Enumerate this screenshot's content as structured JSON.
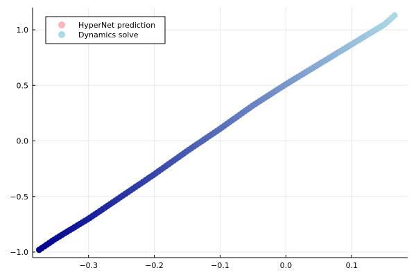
{
  "chart_data": {
    "type": "scatter",
    "title": "",
    "xlabel": "",
    "ylabel": "",
    "xlim": [
      -0.385,
      0.185
    ],
    "ylim": [
      -1.05,
      1.2
    ],
    "x_ticks": [
      -0.3,
      -0.2,
      -0.1,
      0.0,
      0.1
    ],
    "x_tick_labels": [
      "−0.3",
      "−0.2",
      "−0.1",
      "0.0",
      "0.1"
    ],
    "y_ticks": [
      -1.0,
      -0.5,
      0.0,
      0.5,
      1.0
    ],
    "y_tick_labels": [
      "−1.0",
      "−0.5",
      "0.0",
      "0.5",
      "1.0"
    ],
    "grid": true,
    "legend_position": "top-left",
    "series": [
      {
        "name": "HyperNet prediction",
        "color": "#ffb3ba",
        "x": [
          -0.375,
          -0.35,
          -0.3,
          -0.25,
          -0.2,
          -0.15,
          -0.1,
          -0.05,
          0.0,
          0.05,
          0.1,
          0.15,
          0.165
        ],
        "y": [
          -0.98,
          -0.88,
          -0.7,
          -0.5,
          -0.3,
          -0.09,
          0.11,
          0.32,
          0.51,
          0.69,
          0.87,
          1.05,
          1.13
        ]
      },
      {
        "name": "Dynamics solve",
        "color_start": "#00008b",
        "color_end": "#add8e6",
        "x": [
          -0.375,
          -0.35,
          -0.3,
          -0.25,
          -0.2,
          -0.15,
          -0.1,
          -0.05,
          0.0,
          0.05,
          0.1,
          0.15,
          0.165
        ],
        "y": [
          -0.98,
          -0.88,
          -0.7,
          -0.5,
          -0.3,
          -0.09,
          0.11,
          0.32,
          0.51,
          0.69,
          0.87,
          1.05,
          1.13
        ]
      }
    ]
  },
  "legend": {
    "items": [
      {
        "label": "HyperNet prediction",
        "color": "#ffb3ba"
      },
      {
        "label": "Dynamics solve",
        "color": "#add8e6"
      }
    ]
  }
}
